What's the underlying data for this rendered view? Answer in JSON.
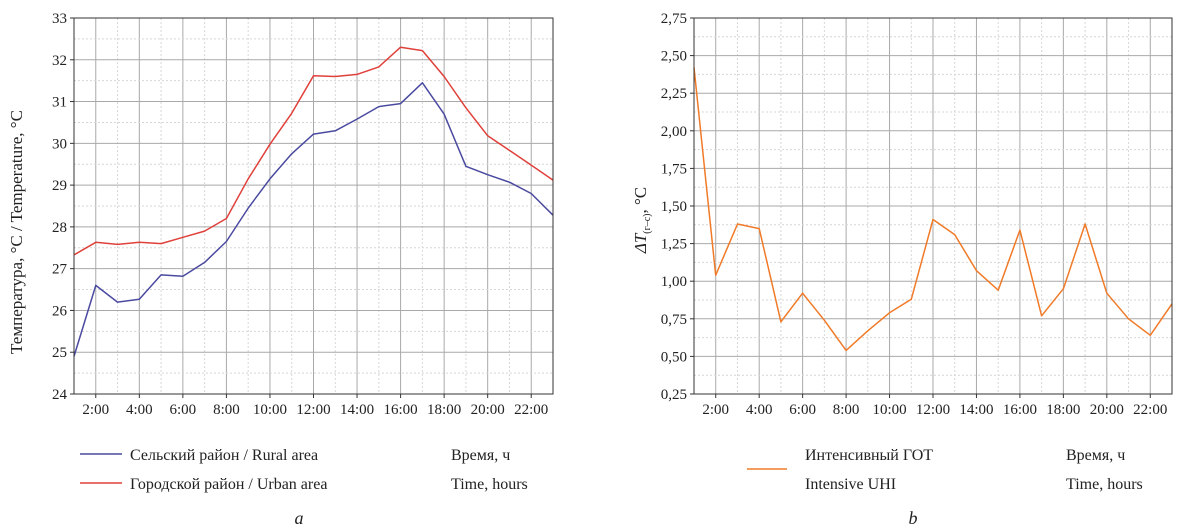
{
  "chart_data": [
    {
      "type": "line",
      "panel_label": "a",
      "ylabel": "Температура, °C / Temperature, °C",
      "xlabel_lines": [
        "Время, ч",
        "Time, hours"
      ],
      "ylim": [
        24,
        33
      ],
      "yticks": [
        "24",
        "25",
        "26",
        "27",
        "28",
        "29",
        "30",
        "31",
        "32",
        "33"
      ],
      "xlim": [
        1,
        23
      ],
      "xticks": [
        {
          "h": 2,
          "label": "2:00"
        },
        {
          "h": 4,
          "label": "4:00"
        },
        {
          "h": 6,
          "label": "6:00"
        },
        {
          "h": 8,
          "label": "8:00"
        },
        {
          "h": 10,
          "label": "10:00"
        },
        {
          "h": 12,
          "label": "12:00"
        },
        {
          "h": 14,
          "label": "14:00"
        },
        {
          "h": 16,
          "label": "16:00"
        },
        {
          "h": 18,
          "label": "18:00"
        },
        {
          "h": 20,
          "label": "20:00"
        },
        {
          "h": 22,
          "label": "22:00"
        }
      ],
      "x": [
        1,
        2,
        3,
        4,
        5,
        6,
        7,
        8,
        9,
        10,
        11,
        12,
        13,
        14,
        15,
        16,
        17,
        18,
        19,
        20,
        21,
        22,
        23
      ],
      "series": [
        {
          "name": "Сельский район / Rural area",
          "color": "#4a4aa0",
          "values": [
            24.9,
            26.6,
            26.2,
            26.27,
            26.85,
            26.82,
            27.15,
            27.65,
            28.45,
            29.15,
            29.75,
            30.22,
            30.3,
            30.58,
            30.88,
            30.95,
            31.45,
            30.7,
            29.45,
            29.25,
            29.07,
            28.8,
            28.28
          ]
        },
        {
          "name": "Городской район / Urban area",
          "color": "#e0403a",
          "values": [
            27.33,
            27.63,
            27.58,
            27.63,
            27.6,
            27.75,
            27.9,
            28.2,
            29.15,
            29.98,
            30.72,
            31.62,
            31.6,
            31.65,
            31.83,
            32.3,
            32.22,
            31.6,
            30.85,
            30.18,
            29.83,
            29.48,
            29.12
          ]
        }
      ]
    },
    {
      "type": "line",
      "panel_label": "b",
      "ylabel": "ΔT(г–с), °C",
      "ylabel_main": "ΔT",
      "ylabel_sub": "(г–с)",
      "ylabel_tail": ", °C",
      "xlabel_lines": [
        "Время, ч",
        "Time, hours"
      ],
      "ylim": [
        0.25,
        2.75
      ],
      "yticks": [
        "0,25",
        "0,50",
        "0,75",
        "1,00",
        "1,25",
        "1,50",
        "1,75",
        "2,00",
        "2,25",
        "2,50",
        "2,75"
      ],
      "xlim": [
        1,
        23
      ],
      "xticks": [
        {
          "h": 2,
          "label": "2:00"
        },
        {
          "h": 4,
          "label": "4:00"
        },
        {
          "h": 6,
          "label": "6:00"
        },
        {
          "h": 8,
          "label": "8:00"
        },
        {
          "h": 10,
          "label": "10:00"
        },
        {
          "h": 12,
          "label": "12:00"
        },
        {
          "h": 14,
          "label": "14:00"
        },
        {
          "h": 16,
          "label": "16:00"
        },
        {
          "h": 18,
          "label": "18:00"
        },
        {
          "h": 20,
          "label": "20:00"
        },
        {
          "h": 22,
          "label": "22:00"
        }
      ],
      "x": [
        1,
        2,
        3,
        4,
        5,
        6,
        7,
        8,
        9,
        10,
        11,
        12,
        13,
        14,
        15,
        16,
        17,
        18,
        19,
        20,
        21,
        22,
        23
      ],
      "series": [
        {
          "name": "Интенсивный ГОТ\nIntensive UHI",
          "name_lines": [
            "Интенсивный ГОТ",
            "Intensive UHI"
          ],
          "color": "#f07a28",
          "values": [
            2.42,
            1.04,
            1.38,
            1.35,
            0.73,
            0.92,
            0.74,
            0.54,
            0.67,
            0.79,
            0.88,
            1.41,
            1.31,
            1.07,
            0.94,
            1.34,
            0.77,
            0.95,
            1.38,
            0.92,
            0.75,
            0.64,
            0.85
          ]
        }
      ]
    }
  ]
}
